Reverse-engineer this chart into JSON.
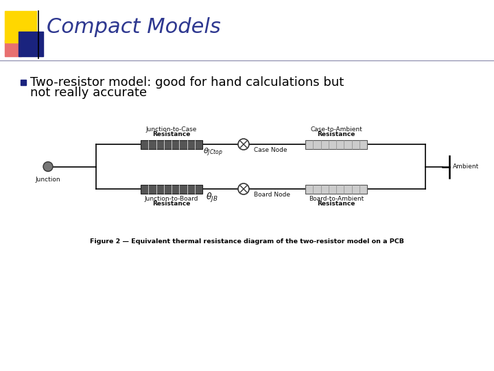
{
  "title": "Compact Models",
  "title_color": "#2e3890",
  "title_fontsize": 22,
  "bg_color": "#ffffff",
  "bullet_text_line1": "Two-resistor model: good for hand calculations but",
  "bullet_text_line2": "not really accurate",
  "bullet_color": "#1a237e",
  "bullet_fontsize": 13,
  "figure_caption": "Figure 2 — Equivalent thermal resistance diagram of the two-resistor model on a PCB",
  "accent_yellow": "#FFD700",
  "accent_blue": "#1a237e",
  "accent_pink": "#e87070",
  "node_color": "#555555",
  "label_color": "#111111",
  "label_fontsize": 6.5,
  "annotation_fontsize": 8.0,
  "resistor_dark": "#555555",
  "resistor_light": "#aaaaaa"
}
